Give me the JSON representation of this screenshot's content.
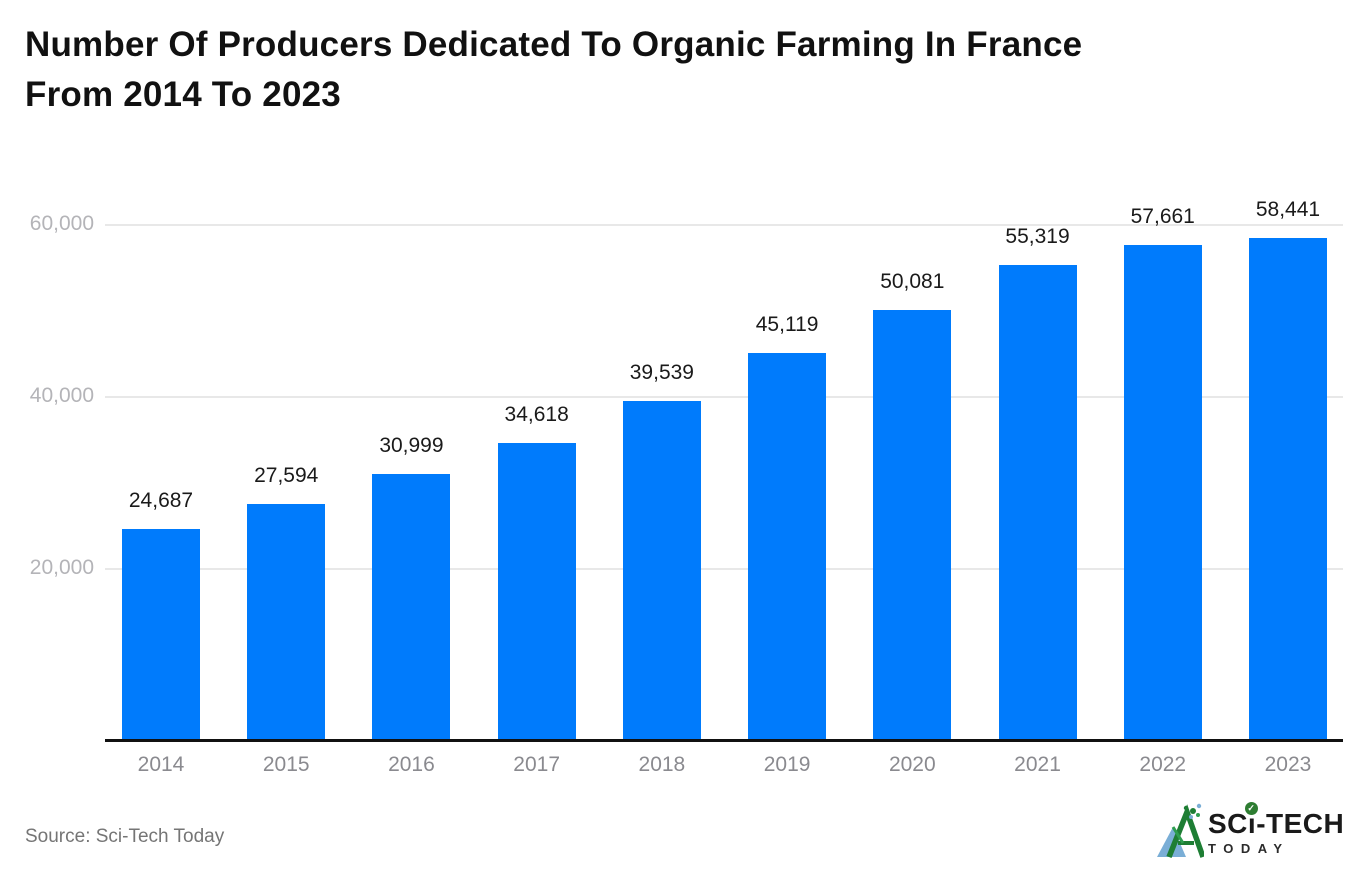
{
  "title": {
    "line1": "Number Of Producers Dedicated To Organic Farming In France",
    "line2": "From 2014 To 2023"
  },
  "chart_data": {
    "type": "bar",
    "title": "Number Of Producers Dedicated To Organic Farming In France From 2014 To 2023",
    "categories": [
      "2014",
      "2015",
      "2016",
      "2017",
      "2018",
      "2019",
      "2020",
      "2021",
      "2022",
      "2023"
    ],
    "values": [
      24687,
      27594,
      30999,
      34618,
      39539,
      45119,
      50081,
      55319,
      57661,
      58441
    ],
    "value_labels": [
      "24,687",
      "27,594",
      "30,999",
      "34,618",
      "39,539",
      "45,119",
      "50,081",
      "55,319",
      "57,661",
      "58,441"
    ],
    "xlabel": "",
    "ylabel": "",
    "yticks": [
      20000,
      40000,
      60000
    ],
    "ytick_labels": [
      "20,000",
      "40,000",
      "60,000"
    ],
    "ylim": [
      0,
      64000
    ],
    "grid": true,
    "legend": "none",
    "bar_color": "#007bfc",
    "gridline_color": "#e8e8e8",
    "axis_line_color": "#111111",
    "ytick_color": "#b4b4b8",
    "xtick_color": "#8a8a8f",
    "value_label_color": "#1a1a1a"
  },
  "footer": {
    "source": "Source: Sci-Tech Today",
    "logo": {
      "brand_prefix": "SC",
      "brand_i": "ı",
      "brand_suffix": "-TECH",
      "check_glyph": "✓",
      "sub": "TODAY",
      "icon_name": "mountain-logo-icon",
      "green": "#1e7e34",
      "light_blue": "#7aaed6"
    }
  }
}
